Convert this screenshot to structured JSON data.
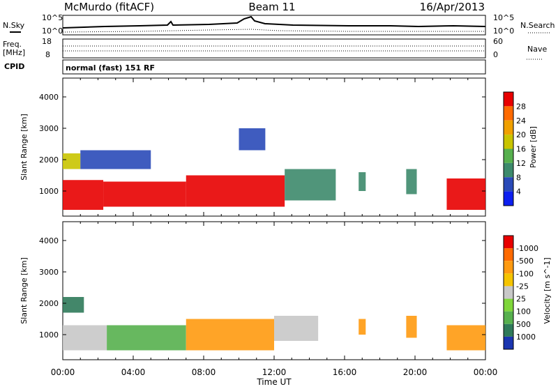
{
  "header": {
    "station": "McMurdo (fitACF)",
    "beam": "Beam 11",
    "date": "16/Apr/2013"
  },
  "noise_panel": {
    "left_label": "N.Sky",
    "right_label": "N.Search",
    "left_ticks": [
      "10^5",
      "10^0"
    ],
    "right_ticks": [
      "10^5",
      "10^0"
    ]
  },
  "freq_panel": {
    "label_line1": "Freq.",
    "label_line2": "[MHz]",
    "left_ticks": [
      "18",
      "8"
    ],
    "right_label": "Nave",
    "right_ticks": [
      "60",
      "0"
    ]
  },
  "cpid": {
    "label": "CPID",
    "value": "normal (fast) 151 RF"
  },
  "time_axis": {
    "label": "Time UT",
    "tick_labels": [
      "00:00",
      "04:00",
      "08:00",
      "12:00",
      "16:00",
      "20:00",
      "00:00"
    ]
  },
  "chart_data": [
    {
      "type": "heatmap",
      "ylabel": "Slant Range [km]",
      "xlabel": "Time UT",
      "y_tick_labels": [
        "1000",
        "2000",
        "3000",
        "4000"
      ],
      "ylim": [
        200,
        4600
      ],
      "xlim_hours": [
        0,
        24
      ],
      "colorbar": {
        "label": "Power [dB]",
        "tick_labels": [
          "4",
          "8",
          "12",
          "16",
          "20",
          "24",
          "28"
        ],
        "colors": [
          "#0d1ff0",
          "#2a4ab8",
          "#3d8a6c",
          "#57b04e",
          "#c9c400",
          "#f0a000",
          "#ff6a00",
          "#e80000"
        ]
      },
      "regions": [
        {
          "t_start": 0.0,
          "t_end": 2.3,
          "r_low": 400,
          "r_high": 1350,
          "color": "#e80000"
        },
        {
          "t_start": 2.3,
          "t_end": 7.0,
          "r_low": 500,
          "r_high": 1300,
          "color": "#e80000"
        },
        {
          "t_start": 7.0,
          "t_end": 12.6,
          "r_low": 500,
          "r_high": 1500,
          "color": "#e80000"
        },
        {
          "t_start": 12.6,
          "t_end": 15.5,
          "r_low": 700,
          "r_high": 1700,
          "color": "#3d8a6c"
        },
        {
          "t_start": 16.8,
          "t_end": 17.2,
          "r_low": 1000,
          "r_high": 1600,
          "color": "#3d8a6c"
        },
        {
          "t_start": 19.5,
          "t_end": 20.1,
          "r_low": 900,
          "r_high": 1700,
          "color": "#3d8a6c"
        },
        {
          "t_start": 21.8,
          "t_end": 24.0,
          "r_low": 400,
          "r_high": 1400,
          "color": "#e80000"
        },
        {
          "t_start": 0.0,
          "t_end": 1.0,
          "r_low": 1700,
          "r_high": 2200,
          "color": "#c9c400"
        },
        {
          "t_start": 1.0,
          "t_end": 5.0,
          "r_low": 1700,
          "r_high": 2300,
          "color": "#2a4ab8"
        },
        {
          "t_start": 10.0,
          "t_end": 11.5,
          "r_low": 2300,
          "r_high": 3000,
          "color": "#2a4ab8"
        }
      ]
    },
    {
      "type": "heatmap",
      "ylabel": "Slant Range [km]",
      "xlabel": "Time UT",
      "y_tick_labels": [
        "1000",
        "2000",
        "3000",
        "4000"
      ],
      "ylim": [
        200,
        4600
      ],
      "xlim_hours": [
        0,
        24
      ],
      "colorbar": {
        "label": "Velocity [m s^-1]",
        "tick_labels": [
          "1000",
          "500",
          "100",
          "25",
          "-25",
          "-100",
          "-500",
          "-1000"
        ],
        "colors": [
          "#1a35b0",
          "#2f7a5a",
          "#57b04e",
          "#7fd63a",
          "#c8c8c8",
          "#f5c400",
          "#ff9a10",
          "#ff6a00",
          "#e80000"
        ]
      },
      "regions": [
        {
          "t_start": 0.0,
          "t_end": 2.5,
          "r_low": 500,
          "r_high": 1300,
          "color": "#c8c8c8"
        },
        {
          "t_start": 2.5,
          "t_end": 7.0,
          "r_low": 500,
          "r_high": 1300,
          "color": "#57b04e"
        },
        {
          "t_start": 7.0,
          "t_end": 12.0,
          "r_low": 500,
          "r_high": 1500,
          "color": "#ff9a10"
        },
        {
          "t_start": 12.0,
          "t_end": 14.5,
          "r_low": 800,
          "r_high": 1600,
          "color": "#c8c8c8"
        },
        {
          "t_start": 16.8,
          "t_end": 17.2,
          "r_low": 1000,
          "r_high": 1500,
          "color": "#ff9a10"
        },
        {
          "t_start": 19.5,
          "t_end": 20.1,
          "r_low": 900,
          "r_high": 1600,
          "color": "#ff9a10"
        },
        {
          "t_start": 21.8,
          "t_end": 24.0,
          "r_low": 500,
          "r_high": 1300,
          "color": "#ff9a10"
        },
        {
          "t_start": 0.0,
          "t_end": 1.2,
          "r_low": 1700,
          "r_high": 2200,
          "color": "#2f7a5a"
        }
      ]
    }
  ]
}
